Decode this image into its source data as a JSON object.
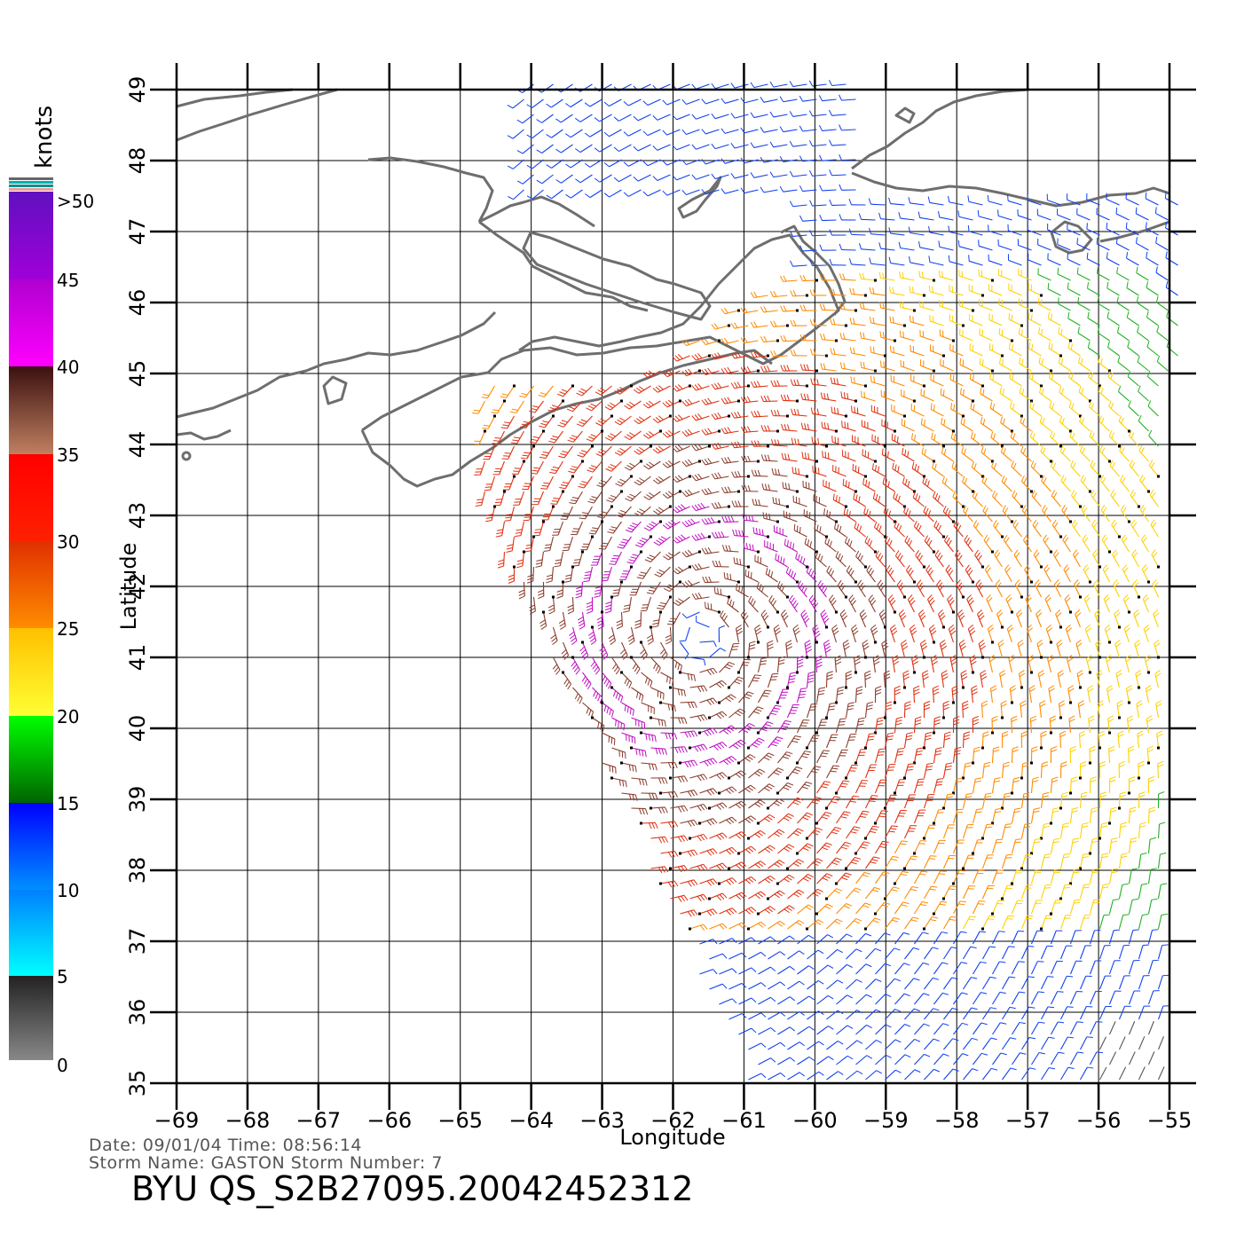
{
  "map": {
    "x_axis_label": "Longitude",
    "y_axis_label": "Latitude",
    "lon_range": [
      -69,
      -55
    ],
    "lat_range": [
      35,
      49
    ],
    "lon_ticks": [
      "-69",
      "-68",
      "-67",
      "-66",
      "-65",
      "-64",
      "-63",
      "-62",
      "-61",
      "-60",
      "-59",
      "-58",
      "-57",
      "-56",
      "-55"
    ],
    "lat_ticks": [
      "35",
      "36",
      "37",
      "38",
      "39",
      "40",
      "41",
      "42",
      "43",
      "44",
      "45",
      "46",
      "47",
      "48",
      "49"
    ],
    "coastline_color": "#6e6e6e",
    "storm_center_lon": -61.6,
    "storm_center_lat": 41.3
  },
  "legend": {
    "unit": "knots",
    "labels": [
      "0",
      "5",
      "10",
      "15",
      "20",
      "25",
      "30",
      "35",
      "40",
      "45",
      ">50"
    ],
    "colors": [
      "#808080",
      "#00e5ff",
      "#0000ff",
      "#00cc00",
      "#ffd800",
      "#ff4500",
      "#d2691e",
      "#ff00ff",
      "#7b00d4"
    ]
  },
  "info": {
    "date_line": "Date: 09/01/04   Time: 08:56:14",
    "storm_line": "Storm  Name: GASTON   Storm  Number: 7",
    "product_id": "BYU  QS_S2B27095.20042452312"
  }
}
